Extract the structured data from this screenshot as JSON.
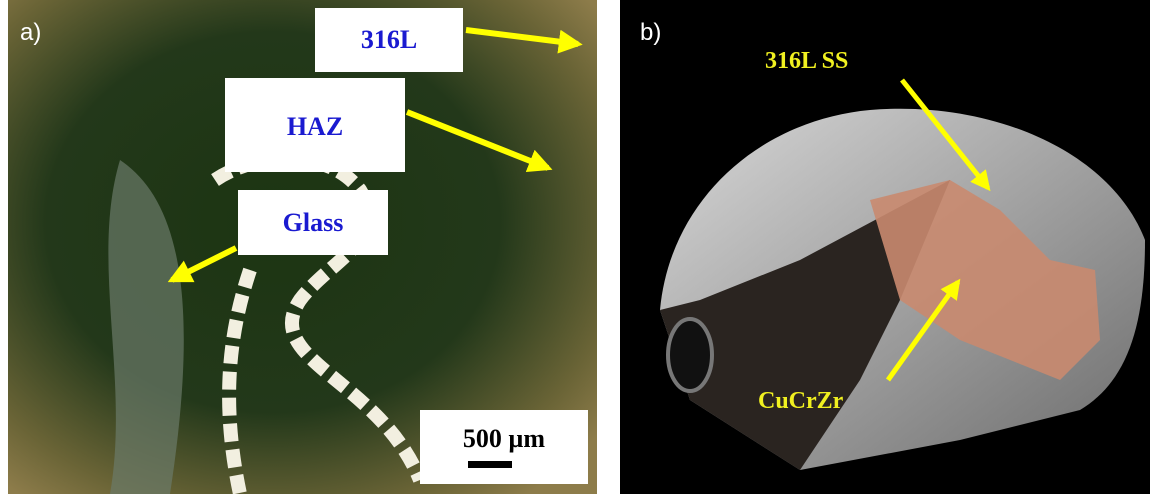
{
  "panels": [
    {
      "label": "a)",
      "annotations": [
        "316L",
        "HAZ",
        "Glass"
      ],
      "scale_bar": "500 µm"
    },
    {
      "label": "b)",
      "annotations": [
        "316L SS",
        "CuCrZr"
      ]
    }
  ]
}
